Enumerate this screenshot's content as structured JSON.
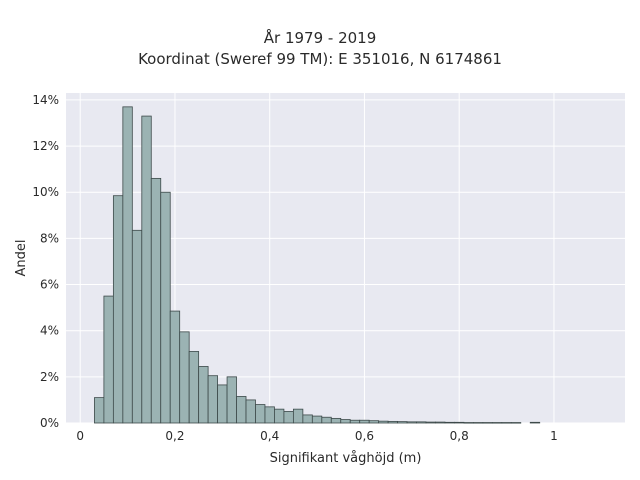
{
  "chart_data": {
    "type": "bar",
    "title": "År 1979 - 2019",
    "subtitle": "Koordinat (Sweref 99 TM): E 351016, N 6174861",
    "xlabel": "Signifikant våghöjd (m)",
    "ylabel": "Andel",
    "xlim": [
      -0.03,
      1.15
    ],
    "ylim": [
      0,
      14.3
    ],
    "x_ticks": [
      0,
      0.2,
      0.4,
      0.6,
      0.8,
      1.0
    ],
    "x_tick_labels": [
      "0",
      "0,2",
      "0,4",
      "0,6",
      "0,8",
      "1"
    ],
    "y_ticks": [
      0,
      2,
      4,
      6,
      8,
      10,
      12,
      14
    ],
    "y_tick_labels": [
      "0%",
      "2%",
      "4%",
      "6%",
      "8%",
      "10%",
      "12%",
      "14%"
    ],
    "bin_width": 0.02,
    "bin_starts": [
      0.03,
      0.05,
      0.07,
      0.09,
      0.11,
      0.13,
      0.15,
      0.17,
      0.19,
      0.21,
      0.23,
      0.25,
      0.27,
      0.29,
      0.31,
      0.33,
      0.35,
      0.37,
      0.39,
      0.41,
      0.43,
      0.45,
      0.47,
      0.49,
      0.51,
      0.53,
      0.55,
      0.57,
      0.59,
      0.61,
      0.63,
      0.65,
      0.67,
      0.69,
      0.71,
      0.73,
      0.75,
      0.77,
      0.79,
      0.81,
      0.83,
      0.85,
      0.87,
      0.89,
      0.91,
      0.93,
      0.95,
      0.97
    ],
    "values": [
      1.1,
      5.5,
      9.85,
      13.7,
      8.35,
      13.3,
      10.6,
      10.0,
      4.85,
      3.95,
      3.1,
      2.45,
      2.05,
      1.65,
      2.0,
      1.15,
      1.0,
      0.8,
      0.7,
      0.6,
      0.5,
      0.6,
      0.35,
      0.3,
      0.25,
      0.2,
      0.15,
      0.12,
      0.12,
      0.1,
      0.08,
      0.07,
      0.06,
      0.05,
      0.05,
      0.04,
      0.04,
      0.03,
      0.03,
      0.02,
      0.02,
      0.02,
      0.02,
      0.02,
      0.02,
      0.0,
      0.03,
      0.0
    ],
    "grid": true,
    "colors": {
      "bar_fill": "#9bb3b3",
      "bar_edge": "#3d4a4a",
      "plot_background": "#e8e9f1",
      "grid": "#ffffff"
    }
  }
}
